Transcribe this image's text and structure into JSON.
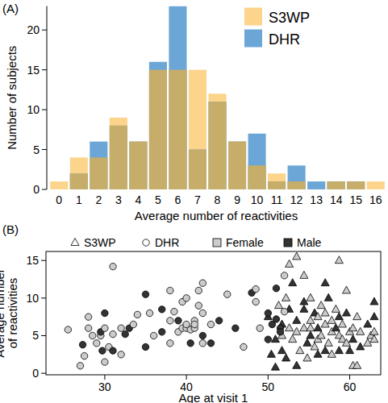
{
  "chart_data": [
    {
      "type": "bar",
      "title": "(A)",
      "x_label": "Average number of reactivities",
      "y_label": "Number of subjects",
      "categories": [
        "0",
        "1",
        "2",
        "3",
        "4",
        "5",
        "6",
        "7",
        "8",
        "9",
        "10",
        "11",
        "12",
        "13",
        "14",
        "15",
        "16"
      ],
      "series": [
        {
          "name": "S3WP",
          "color": "#fcd48b",
          "values": [
            1,
            4,
            4,
            9,
            6,
            15,
            15,
            15,
            12,
            6,
            3,
            2,
            1,
            0,
            1,
            1,
            1
          ]
        },
        {
          "name": "DHR",
          "color": "#6ca6d6",
          "values": [
            0,
            2,
            6,
            8,
            6,
            16,
            23,
            5,
            11,
            6,
            7,
            1,
            3,
            1,
            1,
            1,
            0
          ]
        }
      ],
      "ylim": [
        0,
        23
      ],
      "yticks": [
        0,
        5,
        10,
        15,
        20
      ],
      "legend": "top-right"
    },
    {
      "type": "scatter",
      "title": "(B)",
      "x_label": "Age at visit 1",
      "y_label": "Average number\nof reactivities",
      "series": [
        {
          "name": "S3WP",
          "marker": "triangle",
          "x": [
            50,
            50.4,
            50.9,
            50.9,
            51.3,
            51.7,
            51.7,
            51.7,
            52.2,
            52.2,
            52.6,
            52.6,
            52.6,
            53,
            53,
            53.5,
            53.5,
            53.5,
            53.5,
            53.9,
            54.4,
            54.4,
            54.4,
            54.4,
            54.8,
            54.8,
            55.2,
            55.2,
            55.2,
            55.2,
            55.7,
            55.7,
            56.1,
            56.1,
            56.1,
            56.1,
            56.5,
            56.5,
            57,
            57,
            57,
            57,
            57.4,
            57.4,
            57.8,
            57.8,
            57.8,
            58.3,
            58.3,
            58.7,
            58.7,
            58.7,
            58.7,
            59.1,
            59.1,
            59.6,
            59.6,
            59.6,
            60,
            60,
            60.4,
            60.4,
            60.4,
            60.9,
            60.9,
            61.3,
            61.3,
            62.2,
            62.2,
            62.6,
            63,
            63,
            63,
            63
          ],
          "values": [
            7.5,
            2.5,
            0.8,
            4.5,
            9,
            6.5,
            5,
            3,
            10,
            2,
            8.5,
            6,
            14.5,
            12,
            4.5,
            15.5,
            7,
            5.5,
            1,
            3,
            13,
            6,
            8.5,
            9.5,
            2,
            4,
            10,
            7,
            5,
            6,
            3.5,
            8,
            7.5,
            6,
            4.5,
            2.5,
            9,
            5,
            12,
            6.5,
            8,
            3,
            4,
            10,
            5.5,
            7,
            2.5,
            6,
            8.5,
            15,
            5,
            3,
            7.5,
            4.5,
            6.5,
            11,
            4,
            8,
            5.5,
            3,
            1,
            6,
            4.5,
            1,
            7.5,
            5.5,
            3.5,
            4,
            6.5,
            5,
            9.5,
            7.5,
            5.5,
            4.5
          ],
          "colors": [
            "#333333",
            "#333333",
            "#333333",
            "#333333",
            "#cccccc",
            "#333333",
            "#cccccc",
            "#333333",
            "#cccccc",
            "#333333",
            "#333333",
            "#cccccc",
            "#cccccc",
            "#333333",
            "#cccccc",
            "#cccccc",
            "#333333",
            "#cccccc",
            "#333333",
            "#cccccc",
            "#cccccc",
            "#cccccc",
            "#333333",
            "#333333",
            "#cccccc",
            "#333333",
            "#cccccc",
            "#cccccc",
            "#333333",
            "#cccccc",
            "#cccccc",
            "#333333",
            "#cccccc",
            "#333333",
            "#cccccc",
            "#333333",
            "#cccccc",
            "#cccccc",
            "#333333",
            "#cccccc",
            "#cccccc",
            "#333333",
            "#cccccc",
            "#333333",
            "#cccccc",
            "#cccccc",
            "#cccccc",
            "#333333",
            "#cccccc",
            "#cccccc",
            "#cccccc",
            "#333333",
            "#333333",
            "#cccccc",
            "#cccccc",
            "#cccccc",
            "#cccccc",
            "#333333",
            "#cccccc",
            "#333333",
            "#cccccc",
            "#cccccc",
            "#333333",
            "#cccccc",
            "#cccccc",
            "#cccccc",
            "#333333",
            "#cccccc",
            "#333333",
            "#cccccc",
            "#333333",
            "#333333",
            "#cccccc",
            "#cccccc"
          ]
        },
        {
          "name": "DHR",
          "marker": "circle",
          "x": [
            25.5,
            27,
            27.3,
            27.5,
            28,
            28.5,
            28,
            29,
            29.5,
            29.5,
            29.7,
            30,
            30,
            30,
            30.5,
            31,
            31,
            31,
            32,
            32,
            32.5,
            33,
            33.5,
            34,
            35,
            35,
            35.5,
            36,
            37,
            37,
            38,
            38,
            38,
            38.5,
            39,
            39,
            39.5,
            39.5,
            40,
            40,
            40,
            40.5,
            40.5,
            41,
            41,
            41,
            41.5,
            41.5,
            42,
            42,
            42,
            42,
            43,
            43,
            44,
            45,
            46,
            47,
            48,
            48.5,
            48.5,
            49,
            50,
            50,
            50.5,
            51,
            51,
            51.5,
            52,
            52,
            51.5
          ],
          "values": [
            5.8,
            1,
            3.8,
            2.3,
            6,
            5,
            7.5,
            4,
            5,
            5.5,
            3,
            8,
            1.5,
            6,
            3.5,
            14.2,
            5.2,
            3,
            6,
            2.5,
            5.2,
            6,
            6.5,
            7.8,
            10.5,
            3.5,
            8,
            5,
            5.5,
            8.5,
            11,
            7,
            4,
            8.2,
            7,
            5.5,
            6,
            9.5,
            6,
            6.5,
            10,
            5.8,
            4,
            6,
            7,
            6.5,
            9,
            11,
            8,
            5,
            4,
            12,
            6.5,
            4,
            7,
            10.5,
            6,
            3.5,
            10.7,
            11.2,
            9.5,
            6,
            8,
            4.5,
            6.5,
            7.2,
            11.3,
            6,
            13,
            8.2,
            5.5
          ],
          "colors": [
            "#cccccc",
            "#cccccc",
            "#333333",
            "#cccccc",
            "#cccccc",
            "#cccccc",
            "#cccccc",
            "#cccccc",
            "#cccccc",
            "#333333",
            "#333333",
            "#333333",
            "#cccccc",
            "#cccccc",
            "#cccccc",
            "#cccccc",
            "#cccccc",
            "#333333",
            "#cccccc",
            "#cccccc",
            "#333333",
            "#333333",
            "#cccccc",
            "#cccccc",
            "#333333",
            "#333333",
            "#cccccc",
            "#cccccc",
            "#333333",
            "#333333",
            "#cccccc",
            "#cccccc",
            "#cccccc",
            "#cccccc",
            "#333333",
            "#cccccc",
            "#cccccc",
            "#cccccc",
            "#cccccc",
            "#cccccc",
            "#cccccc",
            "#cccccc",
            "#333333",
            "#cccccc",
            "#cccccc",
            "#cccccc",
            "#cccccc",
            "#cccccc",
            "#cccccc",
            "#333333",
            "#cccccc",
            "#cccccc",
            "#cccccc",
            "#333333",
            "#333333",
            "#cccccc",
            "#333333",
            "#cccccc",
            "#333333",
            "#cccccc",
            "#cccccc",
            "#cccccc",
            "#333333",
            "#333333",
            "#333333",
            "#333333",
            "#333333",
            "#333333",
            "#cccccc",
            "#cccccc",
            "#333333"
          ]
        }
      ],
      "color_legend": [
        {
          "name": "Female",
          "color": "#cccccc"
        },
        {
          "name": "Male",
          "color": "#333333"
        }
      ],
      "xlim": [
        22.8,
        63.8
      ],
      "xticks": [
        30,
        40,
        50,
        60
      ],
      "ylim": [
        -0.2,
        16.2
      ],
      "yticks": [
        0,
        5,
        10,
        15
      ],
      "legend": "top"
    }
  ]
}
